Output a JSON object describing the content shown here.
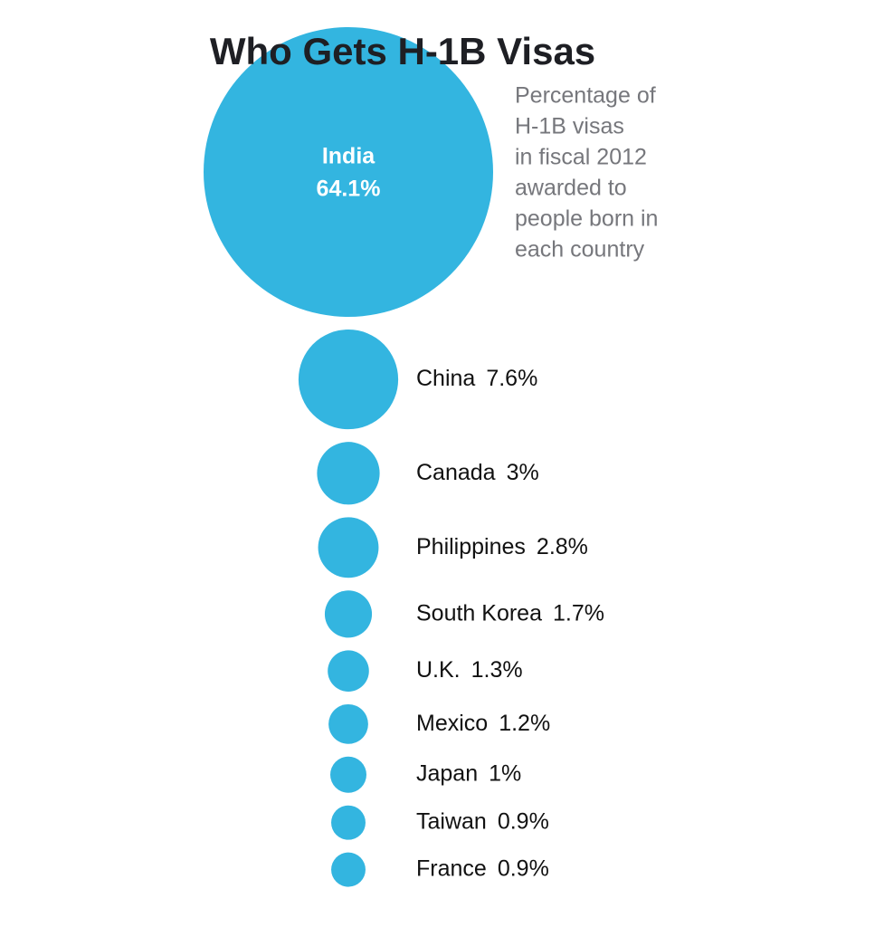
{
  "chart_data": {
    "type": "bubble",
    "title": "Who Gets H-1B Visas",
    "subtitle": [
      "Percentage of",
      "H-1B visas",
      "in fiscal 2012",
      "awarded to",
      "people born in",
      "each country"
    ],
    "categories": [
      "India",
      "China",
      "Canada",
      "Philippines",
      "South Korea",
      "U.K.",
      "Mexico",
      "Japan",
      "Taiwan",
      "France"
    ],
    "values": [
      64.1,
      7.6,
      3,
      2.8,
      1.7,
      1.3,
      1.2,
      1,
      0.9,
      0.9
    ],
    "value_labels": [
      "64.1%",
      "7.6%",
      "3%",
      "2.8%",
      "1.7%",
      "1.3%",
      "1.2%",
      "1%",
      "0.9%",
      "0.9%"
    ],
    "color": "#33b5e0"
  }
}
